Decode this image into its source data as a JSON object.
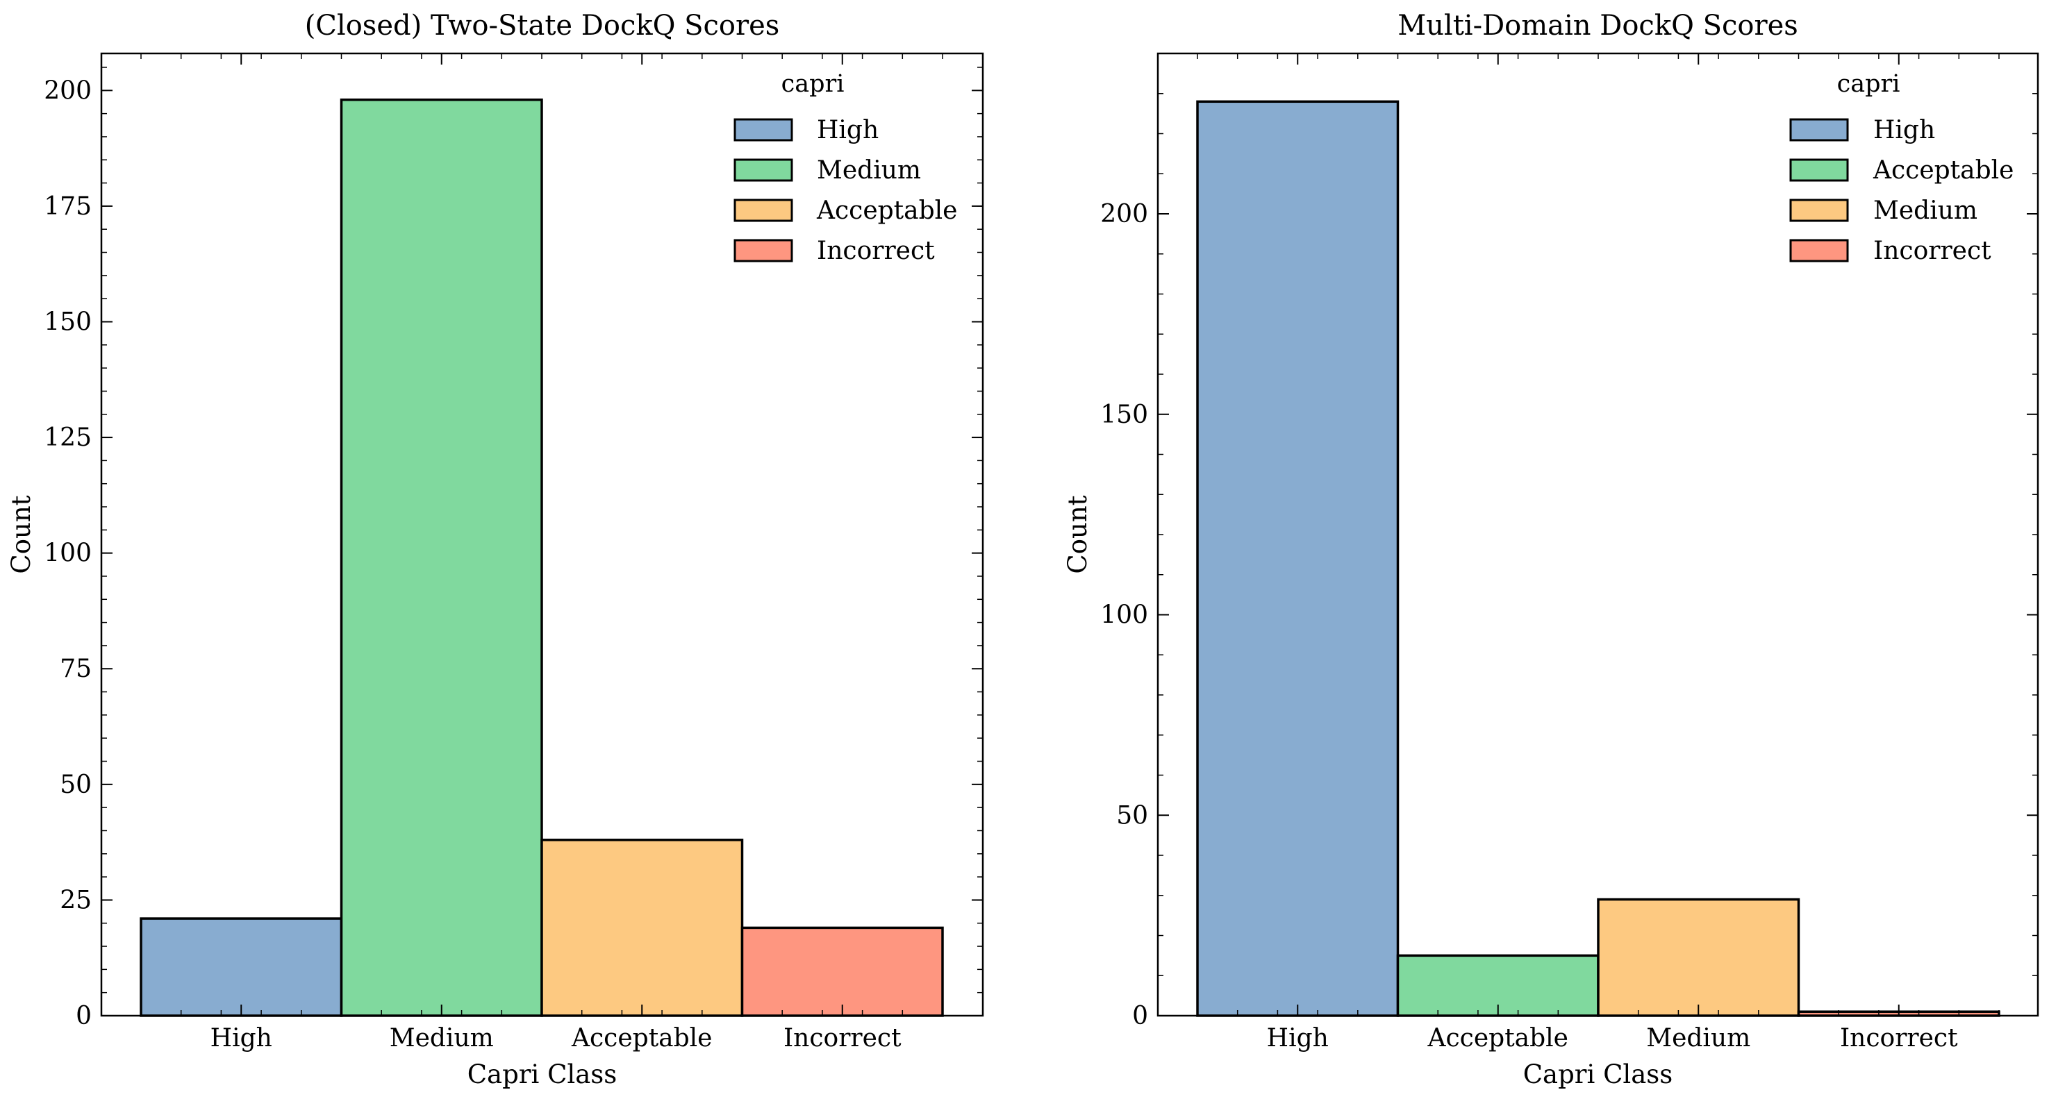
{
  "chart_data": [
    {
      "type": "bar",
      "title": "(Closed) Two-State DockQ Scores",
      "xlabel": "Capri Class",
      "ylabel": "Count",
      "categories": [
        "High",
        "Medium",
        "Acceptable",
        "Incorrect"
      ],
      "values": [
        21,
        198,
        38,
        19
      ],
      "colors": [
        "#88acd0",
        "#80d99e",
        "#fdc981",
        "#fe9680"
      ],
      "ylim": [
        0,
        208
      ],
      "yticks": [
        0,
        25,
        50,
        75,
        100,
        125,
        150,
        175,
        200
      ],
      "ytick_labels": [
        "0",
        "25",
        "50",
        "75",
        "100",
        "125",
        "150",
        "175",
        "200"
      ],
      "grid": false,
      "legend": {
        "title": "capri",
        "placement": "top-right",
        "entries": [
          {
            "label": "High",
            "color": "#88acd0"
          },
          {
            "label": "Medium",
            "color": "#80d99e"
          },
          {
            "label": "Acceptable",
            "color": "#fdc981"
          },
          {
            "label": "Incorrect",
            "color": "#fe9680"
          }
        ]
      }
    },
    {
      "type": "bar",
      "title": "Multi-Domain DockQ Scores",
      "xlabel": "Capri Class",
      "ylabel": "Count",
      "categories": [
        "High",
        "Acceptable",
        "Medium",
        "Incorrect"
      ],
      "values": [
        228,
        15,
        29,
        1
      ],
      "colors": [
        "#88acd0",
        "#80d99e",
        "#fdc981",
        "#fe9680"
      ],
      "ylim": [
        0,
        240
      ],
      "yticks": [
        0,
        50,
        100,
        150,
        200
      ],
      "ytick_labels": [
        "0",
        "50",
        "100",
        "150",
        "200"
      ],
      "grid": false,
      "legend": {
        "title": "capri",
        "placement": "top-right",
        "entries": [
          {
            "label": "High",
            "color": "#88acd0"
          },
          {
            "label": "Acceptable",
            "color": "#80d99e"
          },
          {
            "label": "Medium",
            "color": "#fdc981"
          },
          {
            "label": "Incorrect",
            "color": "#fe9680"
          }
        ]
      }
    }
  ]
}
